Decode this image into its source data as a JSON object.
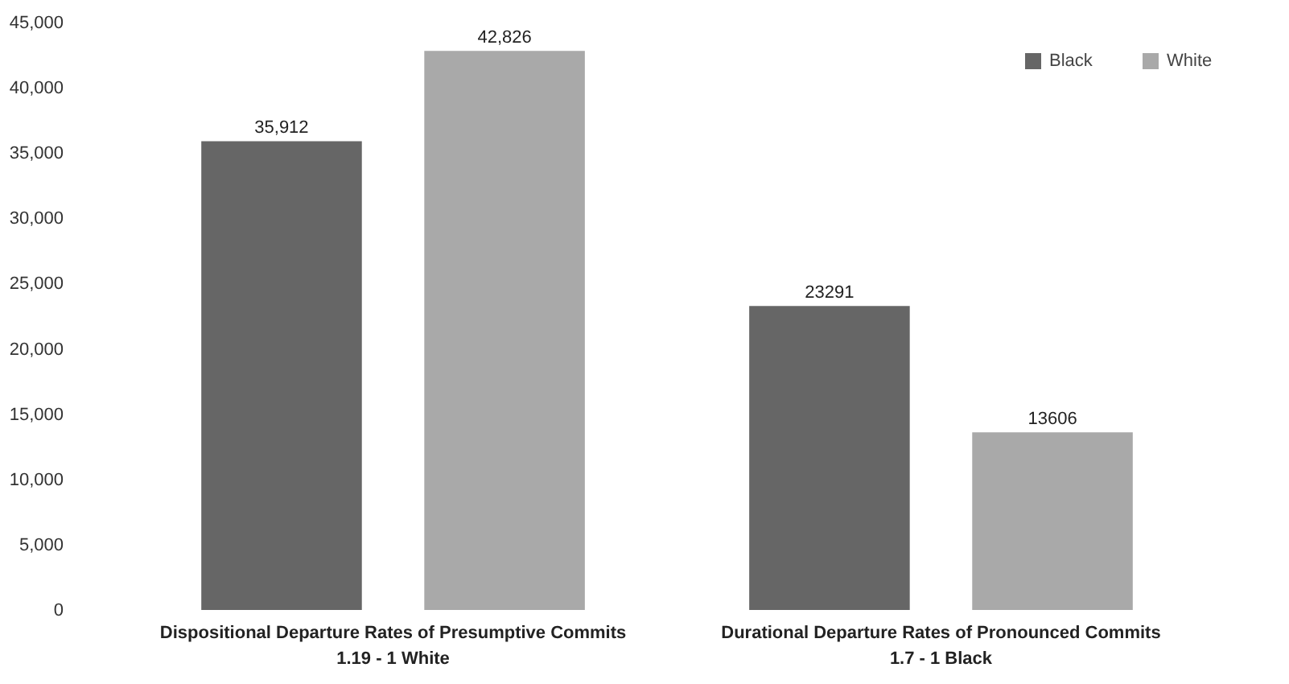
{
  "chart_data": {
    "type": "bar",
    "categories": [
      "Dispositional Departure Rates of Presumptive Commits\n1.19 - 1 White",
      "Durational Departure Rates of Pronounced Commits\n1.7 - 1 Black"
    ],
    "series": [
      {
        "name": "Black",
        "color": "#666666",
        "values": [
          35912,
          23291
        ],
        "value_labels": [
          "35,912",
          "23291"
        ]
      },
      {
        "name": "White",
        "color": "#a9a9a9",
        "values": [
          42826,
          13606
        ],
        "value_labels": [
          "42,826",
          "13606"
        ]
      }
    ],
    "ylim": [
      0,
      45000
    ],
    "yticks": [
      0,
      {
        "value": 5000,
        "label": "5,000"
      },
      {
        "value": 10000,
        "label": "10,000"
      },
      {
        "value": 15000,
        "label": "15,000"
      },
      {
        "value": 20000,
        "label": "20,000"
      },
      {
        "value": 25000,
        "label": "25,000"
      },
      {
        "value": 30000,
        "label": "30,000"
      },
      {
        "value": 35000,
        "label": "35,000"
      },
      {
        "value": 40000,
        "label": "40,000"
      },
      {
        "value": 45000,
        "label": "45,000"
      }
    ],
    "legend": "top right"
  }
}
